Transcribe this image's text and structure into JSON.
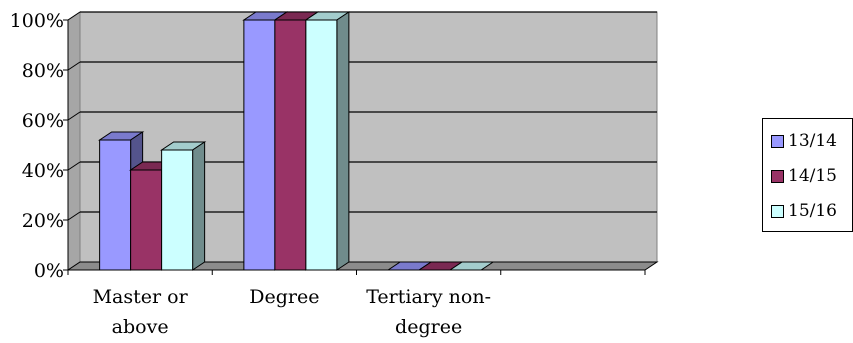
{
  "chart_data": {
    "type": "bar",
    "categories": [
      "Master or above",
      "Degree",
      "Tertiary non-degree"
    ],
    "category_lines": [
      [
        "Master or",
        "above"
      ],
      [
        "Degree"
      ],
      [
        "Tertiary non-",
        "degree"
      ]
    ],
    "series": [
      {
        "name": "13/14",
        "values": [
          52,
          100,
          0
        ],
        "color": "#9999ff"
      },
      {
        "name": "14/15",
        "values": [
          40,
          100,
          0
        ],
        "color": "#993366"
      },
      {
        "name": "15/16",
        "values": [
          48,
          100,
          0
        ],
        "color": "#ccffff"
      }
    ],
    "ylim": [
      0,
      100
    ],
    "yticks": [
      "0%",
      "20%",
      "40%",
      "60%",
      "80%",
      "100%"
    ],
    "ytick_values": [
      0,
      20,
      40,
      60,
      80,
      100
    ],
    "grid": true,
    "legend": "right",
    "plot_background": "#c0c0c0",
    "title": "",
    "xlabel": "",
    "ylabel": ""
  }
}
